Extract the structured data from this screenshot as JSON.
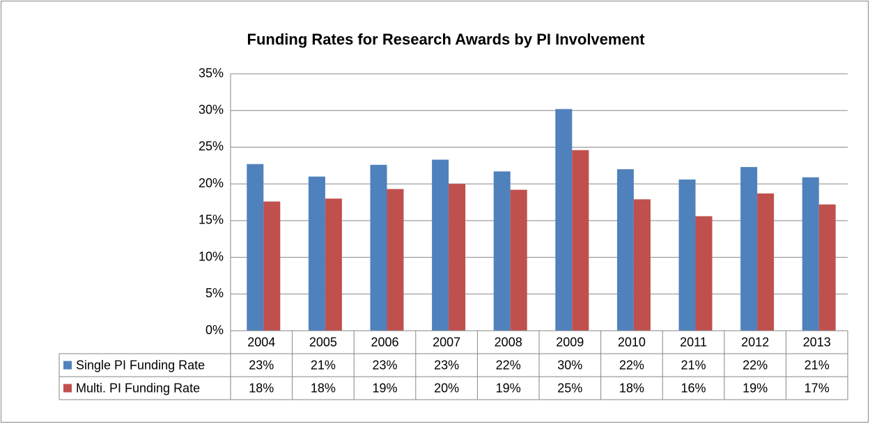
{
  "chart_data": {
    "type": "bar",
    "title": "Funding Rates for Research Awards by PI Involvement",
    "categories": [
      "2004",
      "2005",
      "2006",
      "2007",
      "2008",
      "2009",
      "2010",
      "2011",
      "2012",
      "2013"
    ],
    "series": [
      {
        "name": "Single PI Funding Rate",
        "color": "#4f81bd",
        "values": [
          22.7,
          21.0,
          22.6,
          23.3,
          21.7,
          30.2,
          22.0,
          20.6,
          22.3,
          20.9
        ],
        "value_labels": [
          "23%",
          "21%",
          "23%",
          "23%",
          "22%",
          "30%",
          "22%",
          "21%",
          "22%",
          "21%"
        ]
      },
      {
        "name": "Multi. PI Funding Rate",
        "color": "#c0504d",
        "values": [
          17.6,
          18.0,
          19.3,
          20.0,
          19.2,
          24.6,
          17.9,
          15.6,
          18.7,
          17.2
        ],
        "value_labels": [
          "18%",
          "18%",
          "19%",
          "20%",
          "19%",
          "25%",
          "18%",
          "16%",
          "19%",
          "17%"
        ]
      }
    ],
    "ylim": [
      0,
      35
    ],
    "yticks": [
      {
        "value": 0,
        "label": "0%"
      },
      {
        "value": 5,
        "label": "5%"
      },
      {
        "value": 10,
        "label": "10%"
      },
      {
        "value": 15,
        "label": "15%"
      },
      {
        "value": 20,
        "label": "20%"
      },
      {
        "value": 25,
        "label": "25%"
      },
      {
        "value": 30,
        "label": "30%"
      },
      {
        "value": 35,
        "label": "35%"
      }
    ],
    "grid": true
  }
}
